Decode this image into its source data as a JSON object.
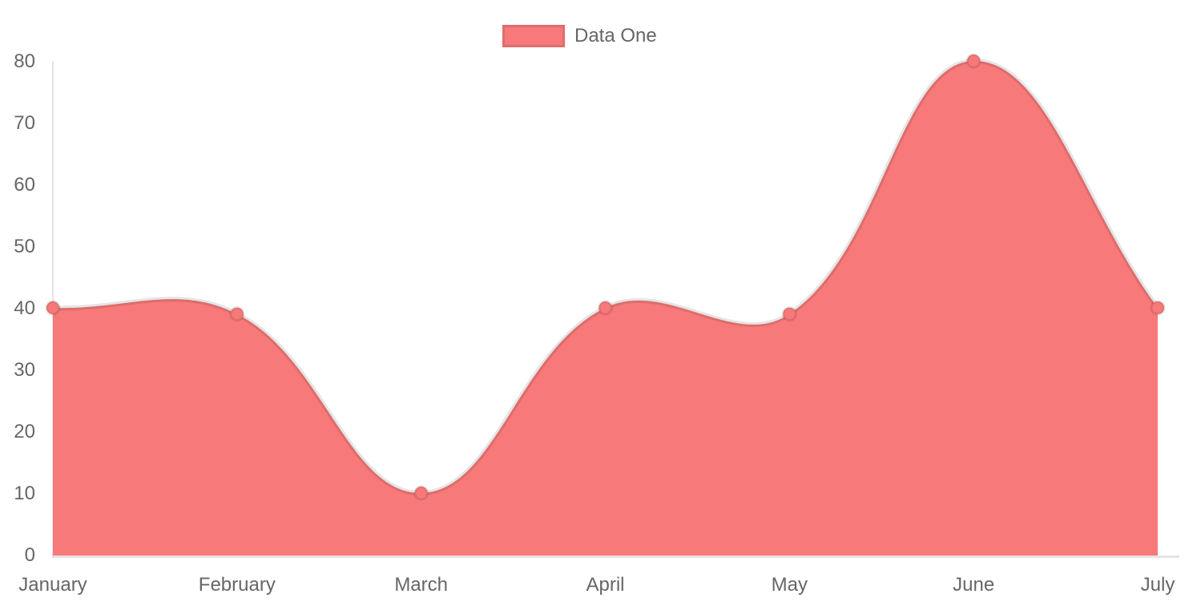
{
  "chart_data": {
    "type": "area",
    "title": "",
    "categories": [
      "January",
      "February",
      "March",
      "April",
      "May",
      "June",
      "July"
    ],
    "series": [
      {
        "name": "Data One",
        "values": [
          40,
          39,
          10,
          40,
          39,
          80,
          40
        ],
        "color": "#f87979"
      }
    ],
    "xlabel": "",
    "ylabel": "",
    "ylim": [
      0,
      80
    ],
    "yticks": [
      0,
      10,
      20,
      30,
      40,
      50,
      60,
      70,
      80
    ],
    "grid": "off",
    "legend_position": "top",
    "curve": "bezier",
    "curve_tension": 0.4,
    "colors": {
      "fill": "#f87979",
      "point_fill": "#f87979",
      "line_stroke": "rgba(0,0,0,0.1)",
      "axis_line": "rgba(0,0,0,0.1)",
      "tick_label": "#666666",
      "legend_box_border": "rgba(0,0,0,0.1)"
    }
  }
}
